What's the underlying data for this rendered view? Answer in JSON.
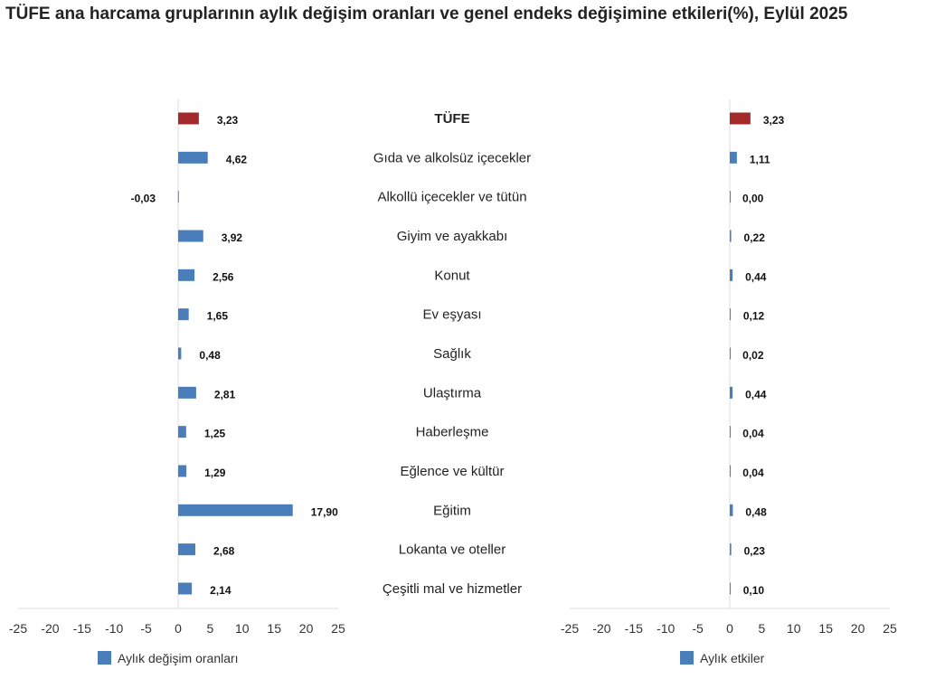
{
  "title": "TÜFE ana harcama gruplarının aylık değişim oranları ve genel endeks değişimine etkileri(%), Eylül 2025",
  "chart_data": [
    {
      "type": "bar",
      "orientation": "horizontal",
      "categories": [
        "TÜFE",
        "Gıda ve alkolsüz içecekler",
        "Alkollü içecekler ve tütün",
        "Giyim ve ayakkabı",
        "Konut",
        "Ev eşyası",
        "Sağlık",
        "Ulaştırma",
        "Haberleşme",
        "Eğlence ve kültür",
        "Eğitim",
        "Lokanta ve oteller",
        "Çeşitli mal ve hizmetler"
      ],
      "series": [
        {
          "name": "Aylık değişim oranları",
          "values": [
            3.23,
            4.62,
            -0.03,
            3.92,
            2.56,
            1.65,
            0.48,
            2.81,
            1.25,
            1.29,
            17.9,
            2.68,
            2.14
          ]
        }
      ],
      "data_labels": [
        "3,23",
        "4,62",
        "-0,03",
        "3,92",
        "2,56",
        "1,65",
        "0,48",
        "2,81",
        "1,25",
        "1,29",
        "17,90",
        "2,68",
        "2,14"
      ],
      "xlim": [
        -25,
        25
      ],
      "xticks": [
        "-25",
        "-20",
        "-15",
        "-10",
        "-5",
        "0",
        "5",
        "10",
        "15",
        "20",
        "25"
      ],
      "legend": "bottom",
      "grid": false,
      "colors": {
        "default": "#4a7ebb",
        "highlight": "#a32a2a"
      }
    },
    {
      "type": "bar",
      "orientation": "horizontal",
      "categories": [
        "TÜFE",
        "Gıda ve alkolsüz içecekler",
        "Alkollü içecekler ve tütün",
        "Giyim ve ayakkabı",
        "Konut",
        "Ev eşyası",
        "Sağlık",
        "Ulaştırma",
        "Haberleşme",
        "Eğlence ve kültür",
        "Eğitim",
        "Lokanta ve oteller",
        "Çeşitli mal ve hizmetler"
      ],
      "series": [
        {
          "name": "Aylık etkiler",
          "values": [
            3.23,
            1.11,
            0.0,
            0.22,
            0.44,
            0.12,
            0.02,
            0.44,
            0.04,
            0.04,
            0.48,
            0.23,
            0.1
          ]
        }
      ],
      "data_labels": [
        "3,23",
        "1,11",
        "0,00",
        "0,22",
        "0,44",
        "0,12",
        "0,02",
        "0,44",
        "0,04",
        "0,04",
        "0,48",
        "0,23",
        "0,10"
      ],
      "xlim": [
        -25,
        25
      ],
      "xticks": [
        "-25",
        "-20",
        "-15",
        "-10",
        "-5",
        "0",
        "5",
        "10",
        "15",
        "20",
        "25"
      ],
      "legend": "bottom",
      "grid": false,
      "colors": {
        "default": "#4a7ebb",
        "highlight": "#a32a2a"
      }
    }
  ]
}
